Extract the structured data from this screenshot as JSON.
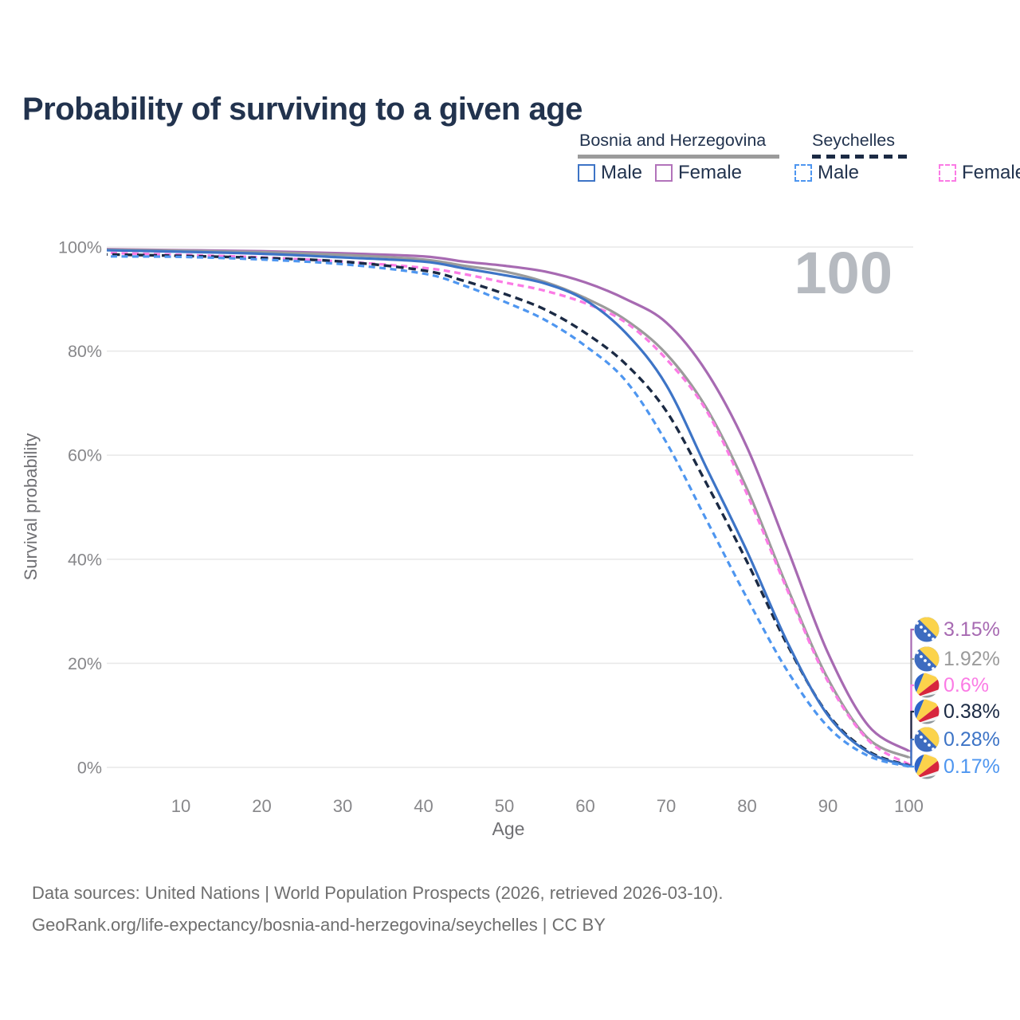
{
  "title": "Probability of surviving to a given age",
  "age_indicator": "100",
  "legend": {
    "groups": [
      {
        "country": "Bosnia and Herzegovina",
        "line_style": "solid",
        "underline_color": "#9b9b9b",
        "items": [
          {
            "label": "Male",
            "color": "#3d74c6"
          },
          {
            "label": "Female",
            "color": "#b273ba"
          }
        ]
      },
      {
        "country": "Seychelles",
        "line_style": "dashed",
        "underline_color": "#1b2a44",
        "items": [
          {
            "label": "Male",
            "color": "#4e96f0"
          },
          {
            "label": "Female",
            "color": "#fb7be5"
          }
        ]
      }
    ]
  },
  "chart_data": {
    "type": "line",
    "title": "Probability of surviving to a given age",
    "xlabel": "Age",
    "ylabel": "Survival probability",
    "xlim": [
      0,
      100
    ],
    "ylim": [
      0,
      100
    ],
    "grid": "horizontal",
    "x_ticks": [
      10,
      20,
      30,
      40,
      50,
      60,
      70,
      80,
      90,
      100
    ],
    "y_ticks": [
      {
        "value": 0,
        "label": "0%"
      },
      {
        "value": 20,
        "label": "20%"
      },
      {
        "value": 40,
        "label": "40%"
      },
      {
        "value": 60,
        "label": "60%"
      },
      {
        "value": 80,
        "label": "80%"
      },
      {
        "value": 100,
        "label": "100%"
      }
    ],
    "ages": [
      0,
      10,
      20,
      30,
      40,
      45,
      50,
      55,
      60,
      65,
      70,
      75,
      80,
      85,
      90,
      95,
      100
    ],
    "series": [
      {
        "name": "Bosnia and Herzegovina Female",
        "color": "#a76ab2",
        "dash": null,
        "width": 3.2,
        "flag": "bosnia-flag",
        "end_label": "3.15%",
        "values": [
          99.6,
          99.4,
          99.2,
          98.8,
          98.2,
          97.2,
          96.4,
          95.3,
          93.2,
          90.0,
          85.5,
          76.0,
          61.5,
          42.0,
          22.0,
          8.0,
          3.15
        ]
      },
      {
        "name": "Bosnia and Herzegovina",
        "color": "#9b9b9b",
        "dash": null,
        "width": 3.2,
        "flag": "bosnia-flag",
        "end_label": "1.92%",
        "values": [
          99.5,
          99.3,
          99.0,
          98.5,
          97.6,
          96.4,
          95.3,
          93.3,
          90.2,
          86.0,
          79.5,
          69.0,
          53.5,
          34.5,
          17.0,
          5.5,
          1.92
        ]
      },
      {
        "name": "Seychelles Female",
        "color": "#fb7be5",
        "dash": "8 5.5",
        "width": 3.3,
        "flag": "seychelles-flag",
        "end_label": "0.6%",
        "values": [
          98.9,
          98.5,
          98.0,
          97.2,
          96.0,
          94.8,
          93.2,
          91.6,
          89.2,
          85.5,
          78.5,
          68.5,
          52.5,
          34.0,
          16.5,
          5.2,
          0.6
        ]
      },
      {
        "name": "Seychelles",
        "color": "#1b2a44",
        "dash": "9.5 6",
        "width": 3.4,
        "flag": "seychelles-flag",
        "end_label": "0.38%",
        "values": [
          98.6,
          98.3,
          97.9,
          97.2,
          95.5,
          93.5,
          91.0,
          88.0,
          83.5,
          77.5,
          68.5,
          54.5,
          39.5,
          23.5,
          10.2,
          3.1,
          0.38
        ]
      },
      {
        "name": "Bosnia and Herzegovina Male",
        "color": "#3d74c6",
        "dash": null,
        "width": 3.2,
        "flag": "bosnia-flag",
        "end_label": "0.28%",
        "values": [
          99.4,
          99.1,
          98.7,
          98.0,
          97.2,
          95.9,
          94.6,
          93.0,
          89.8,
          83.5,
          73.5,
          57.5,
          41.5,
          24.0,
          10.0,
          2.9,
          0.28
        ]
      },
      {
        "name": "Seychelles Male",
        "color": "#4e96f0",
        "dash": "8 5.5",
        "width": 3.2,
        "flag": "seychelles-flag",
        "end_label": "0.17%",
        "values": [
          98.2,
          98.1,
          97.6,
          96.7,
          94.9,
          92.6,
          89.5,
          86.0,
          81.0,
          74.3,
          62.5,
          47.5,
          32.5,
          18.5,
          7.8,
          2.2,
          0.17
        ]
      }
    ]
  },
  "footer": {
    "line1": "Data sources: United Nations | World Population Prospects (2026, retrieved 2026-03-10).",
    "line2": "GeoRank.org/life-expectancy/bosnia-and-herzegovina/seychelles | CC BY"
  }
}
